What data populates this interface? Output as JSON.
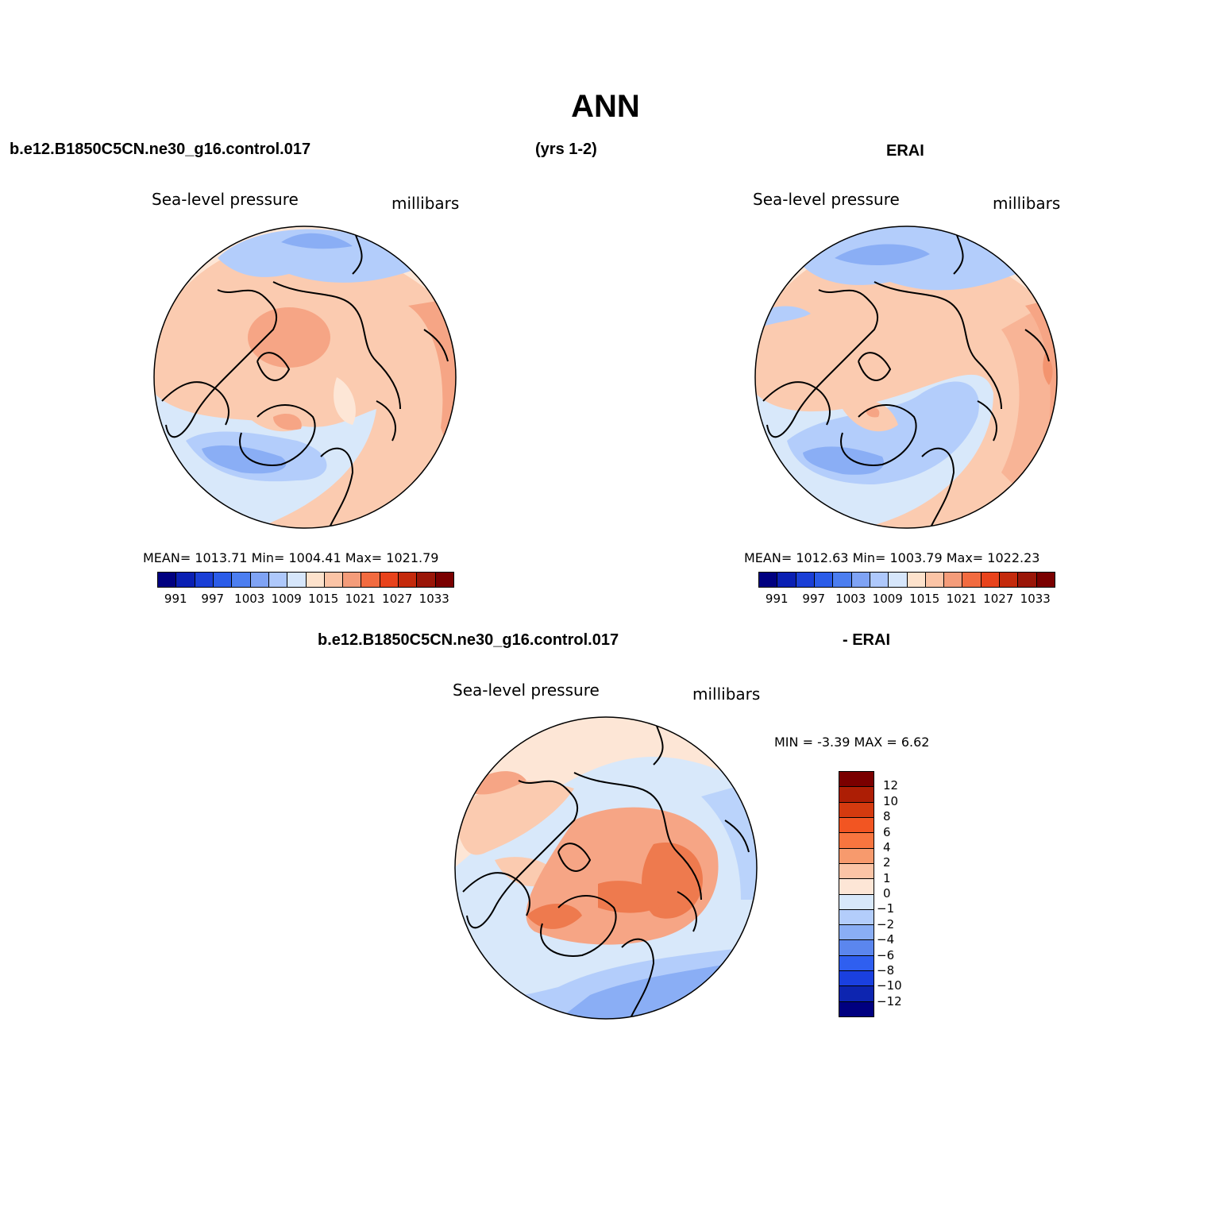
{
  "title": "ANN",
  "top": {
    "case_name": "b.e12.B1850C5CN.ne30_g16.control.017",
    "years": "(yrs 1-2)",
    "obs_name": "ERAI"
  },
  "diff_header": {
    "case_name": "b.e12.B1850C5CN.ne30_g16.control.017",
    "obs_name": "- ERAI"
  },
  "panels": {
    "model": {
      "variable": "Sea-level pressure",
      "units": "millibars",
      "stats": "MEAN= 1013.71   Min= 1004.41   Max= 1021.79"
    },
    "obs": {
      "variable": "Sea-level pressure",
      "units": "millibars",
      "stats": "MEAN= 1012.63   Min= 1003.79   Max= 1022.23"
    },
    "diff": {
      "variable": "Sea-level pressure",
      "units": "millibars",
      "stats": "MIN =   -3.39  MAX =    6.62"
    }
  },
  "colorbar_abs": {
    "colors": [
      "#000080",
      "#0a1fb3",
      "#1a3fd6",
      "#2b5ce8",
      "#4c7ef0",
      "#7fa3f5",
      "#aec8fb",
      "#d6e6fb",
      "#fde2cc",
      "#fbc4a6",
      "#f49c7a",
      "#f26b40",
      "#e8431c",
      "#c42a0c",
      "#9a1608",
      "#7a0000"
    ],
    "labels": [
      "991",
      "997",
      "1003",
      "1009",
      "1015",
      "1021",
      "1027",
      "1033"
    ]
  },
  "colorbar_diff": {
    "colors": [
      "#7a0000",
      "#ad1e05",
      "#d43a0f",
      "#f25522",
      "#f8753f",
      "#f79a6d",
      "#fbc4a6",
      "#fde6d6",
      "#d8e8fa",
      "#b3cdfb",
      "#8aaef5",
      "#5b86ee",
      "#2f5ff0",
      "#1a40e0",
      "#0d25b0",
      "#000080"
    ],
    "labels": [
      "12",
      "10",
      "8",
      "6",
      "4",
      "2",
      "1",
      "0",
      "−1",
      "−2",
      "−4",
      "−6",
      "−8",
      "−10",
      "−12"
    ]
  },
  "map_palette": {
    "coastline": "#000000",
    "orange_strong": "#ee7a4e",
    "orange_mid": "#f6a585",
    "orange_light": "#fbcbb0",
    "cream": "#fde6d6",
    "blue_pale": "#d8e8fa",
    "blue_light": "#b3cdfb",
    "blue_mid": "#8aaef5"
  }
}
